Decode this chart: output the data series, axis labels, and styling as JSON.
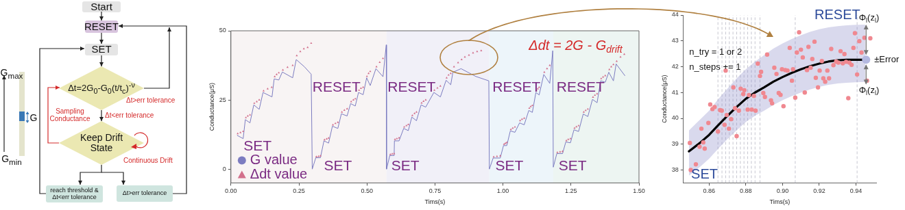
{
  "chart_data": [
    {
      "type": "other",
      "annotations": [
        "Start",
        "RESET",
        "SET",
        "Δt=2G$_{0}$-G$_{0}$(t/t$_{c}$)$^{-ν}$",
        "Δt>err tolerance",
        "Sampling Conductance",
        "Δt<err tolerance",
        "Keep Drift State",
        "Continuous Drift",
        "reach threshold & Δt<err tolerance",
        "Δt>err tolerance",
        "G$_{max}$",
        "G",
        "G$_{min}$"
      ]
    },
    {
      "type": "line",
      "xlabel": "Tims(s)",
      "ylabel": "Conductance(μS)",
      "xlim": [
        0,
        1.5
      ],
      "ylim": [
        -5,
        50
      ],
      "xticks": [
        {
          "value": 0,
          "label": "0.00"
        },
        0.25,
        {
          "value": 0.5,
          "label": "0.50"
        },
        0.75,
        {
          "value": 1,
          "label": "1.00"
        },
        1.25,
        {
          "value": 1.5,
          "label": "1.50"
        }
      ],
      "yticks": [
        0,
        25,
        50
      ],
      "legend": "bottom left",
      "bands": [
        {
          "axis": "x",
          "from": 0,
          "to": 0.572,
          "color": "#f8f4f4"
        },
        {
          "axis": "x",
          "from": 0.572,
          "to": 0.95,
          "color": "#f1f0f8"
        },
        {
          "axis": "x",
          "from": 0.95,
          "to": 1.185,
          "color": "#edf5fa"
        },
        {
          "axis": "x",
          "from": 1.185,
          "to": 1.5,
          "color": "#edf5f2"
        }
      ],
      "annotations": [
        "SET",
        "RESET",
        "SET",
        "RESET",
        "SET",
        "RESET",
        "SET",
        "RESET",
        "SET",
        "Δdt = 2G - G$_{drift}$"
      ],
      "series": [
        {
          "name": "G value",
          "type": "line",
          "marker": "none",
          "color": "#7c7cc0",
          "x": [
            0.023,
            0.045,
            0.053,
            0.07,
            0.084,
            0.104,
            0.118,
            0.151,
            0.159,
            0.176,
            0.189,
            0.227,
            0.24,
            0.27,
            0.295,
            0.299,
            0.312,
            0.329,
            0.342,
            0.359,
            0.373,
            0.393,
            0.406,
            0.427,
            0.44,
            0.457,
            0.469,
            0.486,
            0.499,
            0.512,
            0.533,
            0.559,
            0.571,
            0.572,
            0.584,
            0.6,
            0.601,
            0.618,
            0.635,
            0.652,
            0.665,
            0.682,
            0.699,
            0.716,
            0.746,
            0.77,
            0.791,
            0.808,
            0.816,
            0.846,
            0.9,
            0.948,
            0.95,
            0.964,
            0.99,
            1.002,
            1.014,
            1.027,
            1.044,
            1.061,
            1.078,
            1.095,
            1.108,
            1.121,
            1.133,
            1.15,
            1.172,
            1.183,
            1.185,
            1.198,
            1.219,
            1.231,
            1.248,
            1.261,
            1.278,
            1.295,
            1.312,
            1.329,
            1.346,
            1.359,
            1.376,
            1.389,
            1.406,
            1.416,
            1.448
          ],
          "values": [
            12.2,
            11.0,
            17.9,
            16.7,
            23.2,
            21.6,
            27.7,
            26.1,
            32.6,
            32.2,
            35.1,
            33.0,
            39.6,
            37.0,
            34.3,
            0,
            4.1,
            4.1,
            10.2,
            9.4,
            15.5,
            14.7,
            20.0,
            19.2,
            23.7,
            22.8,
            27.7,
            26.9,
            33.0,
            30.2,
            36.3,
            33.4,
            44.9,
            0,
            4.9,
            4.9,
            10.2,
            10.2,
            14.7,
            13.9,
            18.8,
            17.5,
            23.2,
            22.4,
            27.7,
            26.1,
            32.1,
            30.5,
            35.0,
            36.3,
            33.5,
            31.9,
            0,
            4.0,
            4.0,
            8.5,
            8.5,
            13.8,
            13.3,
            16.7,
            16.0,
            21.2,
            20.5,
            27.7,
            26.8,
            34.2,
            31.0,
            42.8,
            0.7,
            5.6,
            5.6,
            9.8,
            9.5,
            14.2,
            13.6,
            19.9,
            19.0,
            25.2,
            24.0,
            31.9,
            31.4,
            35.0,
            31.9,
            38.0,
            33.8
          ]
        },
        {
          "name": "Δdt value",
          "type": "scatter",
          "marker": "triangle",
          "color": "#d2708c",
          "x": [
            0.025,
            0.035,
            0.045,
            0.055,
            0.062,
            0.07,
            0.086,
            0.095,
            0.104,
            0.12,
            0.135,
            0.15,
            0.161,
            0.168,
            0.176,
            0.191,
            0.208,
            0.227,
            0.242,
            0.255,
            0.268,
            0.282,
            0.295,
            0.314,
            0.322,
            0.329,
            0.344,
            0.352,
            0.359,
            0.375,
            0.384,
            0.393,
            0.408,
            0.417,
            0.427,
            0.442,
            0.45,
            0.457,
            0.471,
            0.478,
            0.486,
            0.5,
            0.506,
            0.512,
            0.535,
            0.547,
            0.559,
            0.586,
            0.593,
            0.6,
            0.603,
            0.61,
            0.618,
            0.637,
            0.645,
            0.652,
            0.667,
            0.675,
            0.682,
            0.701,
            0.708,
            0.716,
            0.748,
            0.759,
            0.77,
            0.793,
            0.8,
            0.808,
            0.82,
            0.835,
            0.848,
            0.86,
            0.875,
            0.89,
            0.905,
            0.92,
            0.966,
            0.978,
            0.99,
            1.004,
            1.009,
            1.014,
            1.029,
            1.036,
            1.044,
            1.063,
            1.07,
            1.078,
            1.097,
            1.102,
            1.108,
            1.123,
            1.128,
            1.133,
            1.152,
            1.162,
            1.172,
            1.2,
            1.21,
            1.219,
            1.233,
            1.24,
            1.248,
            1.263,
            1.27,
            1.278,
            1.297,
            1.304,
            1.312,
            1.331,
            1.338,
            1.346,
            1.361,
            1.368,
            1.376,
            1.391,
            1.398,
            1.406,
            1.418,
            1.432,
            1.446
          ],
          "values": [
            12.8,
            13.2,
            13.6,
            18.6,
            19.2,
            19.6,
            23.8,
            24.4,
            25.0,
            28.3,
            29.0,
            29.6,
            33.4,
            34.2,
            34.8,
            35.8,
            36.8,
            37.5,
            41.0,
            42.5,
            43.5,
            44.0,
            45.5,
            4.5,
            4.6,
            4.8,
            10.6,
            10.9,
            11.2,
            16.0,
            16.5,
            16.9,
            20.6,
            21.3,
            21.8,
            24.4,
            25.0,
            25.4,
            28.5,
            29.2,
            29.6,
            33.5,
            34.6,
            35.3,
            37.0,
            38.6,
            40.0,
            5.3,
            5.5,
            5.6,
            10.7,
            11.0,
            11.3,
            15.2,
            15.7,
            16.1,
            19.4,
            20.1,
            20.6,
            23.9,
            24.5,
            25.0,
            28.5,
            29.3,
            30.0,
            33.0,
            34.0,
            34.6,
            37.0,
            38.5,
            39.6,
            40.5,
            41.2,
            42.0,
            42.5,
            42.8,
            4.4,
            4.6,
            4.8,
            9.0,
            9.3,
            9.6,
            14.3,
            14.8,
            15.2,
            17.5,
            18.0,
            18.4,
            22.0,
            22.6,
            23.0,
            28.4,
            29.0,
            29.6,
            35.0,
            36.3,
            37.5,
            6.0,
            6.2,
            6.4,
            10.3,
            10.7,
            11.0,
            14.8,
            15.3,
            15.7,
            20.6,
            21.2,
            21.7,
            26.0,
            26.7,
            27.2,
            32.7,
            33.3,
            33.8,
            36.0,
            37.0,
            37.8,
            39.0,
            40.5,
            41.5
          ]
        }
      ]
    },
    {
      "type": "scatter",
      "xlabel": "Tims(s)",
      "ylabel": "Conductance(μS)",
      "xlim": [
        0.846,
        0.951
      ],
      "ylim": [
        37.5,
        44
      ],
      "xticks": [
        0.86,
        0.88,
        {
          "value": 0.9,
          "label": "0.90"
        },
        0.92,
        0.94
      ],
      "yticks": [
        38,
        39,
        40,
        41,
        42,
        43,
        44
      ],
      "ref_lines": [
        {
          "axis": "x",
          "value": 0.8648,
          "color": "#b8b8c4",
          "line_style": "dashed"
        },
        {
          "axis": "x",
          "value": 0.867,
          "color": "#b8b8c4",
          "line_style": "dashed"
        },
        {
          "axis": "x",
          "value": 0.869,
          "color": "#b8b8c4",
          "line_style": "dashed"
        },
        {
          "axis": "x",
          "value": 0.871,
          "color": "#b8b8c4",
          "line_style": "dashed"
        },
        {
          "axis": "x",
          "value": 0.873,
          "color": "#b8b8c4",
          "line_style": "dashed"
        },
        {
          "axis": "x",
          "value": 0.875,
          "color": "#b8b8c4",
          "line_style": "dashed"
        },
        {
          "axis": "x",
          "value": 0.877,
          "color": "#b8b8c4",
          "line_style": "dashed"
        },
        {
          "axis": "x",
          "value": 0.879,
          "color": "#b8b8c4",
          "line_style": "dashed"
        },
        {
          "axis": "x",
          "value": 0.881,
          "color": "#b8b8c4",
          "line_style": "dashed"
        },
        {
          "axis": "x",
          "value": 0.883,
          "color": "#b8b8c4",
          "line_style": "dashed"
        },
        {
          "axis": "x",
          "value": 0.885,
          "color": "#b8b8c4",
          "line_style": "dashed"
        },
        {
          "axis": "x",
          "value": 0.8877,
          "color": "#b8b8c4",
          "line_style": "dashed"
        },
        {
          "axis": "x",
          "value": 0.9069,
          "color": "#b8b8c4",
          "line_style": "dashed"
        },
        {
          "axis": "x",
          "value": 0.9406,
          "color": "#b8b8c4",
          "line_style": "dashed"
        }
      ],
      "annotations": [
        "RESET",
        "SET",
        {
          "text": "Φ$_{l}$(z$_{l}$)",
          "x": 0.9455,
          "y": 42.27
        },
        {
          "text": "Φ$_{l}$(z$_{l}$)",
          "x": 0.9455,
          "y": 42.27
        },
        "±Error",
        "n_try = 1 or 2",
        "n_steps += 1"
      ],
      "series": [
        {
          "type": "scatter",
          "marker": "circle",
          "color": "#f08890",
          "x": [
            0.8495,
            0.85,
            0.8528,
            0.8548,
            0.8558,
            0.8568,
            0.8576,
            0.8596,
            0.8606,
            0.8618,
            0.863,
            0.8648,
            0.866,
            0.8669,
            0.869,
            0.8696,
            0.8684,
            0.8708,
            0.872,
            0.8732,
            0.8741,
            0.875,
            0.8762,
            0.8772,
            0.8786,
            0.8792,
            0.881,
            0.8817,
            0.8832,
            0.8844,
            0.8853,
            0.8865,
            0.8877,
            0.8883,
            0.8895,
            0.8904,
            0.8916,
            0.8937,
            0.8943,
            0.8955,
            0.8967,
            0.8979,
            0.8989,
            0.8997,
            0.9005,
            0.9015,
            0.9027,
            0.9039,
            0.9051,
            0.9057,
            0.9069,
            0.9078,
            0.909,
            0.91,
            0.911,
            0.9121,
            0.9133,
            0.9141,
            0.9153,
            0.9162,
            0.9174,
            0.9181,
            0.9193,
            0.9202,
            0.9214,
            0.9222,
            0.9232,
            0.9244,
            0.9253,
            0.9265,
            0.9277,
            0.9292,
            0.9304,
            0.9316,
            0.9328,
            0.9337,
            0.9346,
            0.9358,
            0.9364,
            0.9376,
            0.9386,
            0.9394,
            0.9406,
            0.9418,
            0.943,
            0.9446,
            0.946,
            0.9478
          ],
          "values": [
            39.05,
            38.0,
            38.22,
            38.9,
            39.6,
            39.07,
            38.83,
            39.82,
            40.54,
            40.36,
            40.44,
            39.49,
            40.32,
            40.3,
            41.85,
            40.13,
            39.75,
            39.6,
            39.97,
            41.2,
            40.39,
            39.31,
            40.3,
            41.15,
            40.94,
            41.09,
            40.34,
            40.9,
            40.34,
            40.87,
            40.3,
            42.12,
            41.64,
            41.8,
            40.98,
            40.83,
            42.47,
            40.7,
            40.58,
            41.96,
            41.72,
            40.98,
            40.91,
            41.9,
            40.47,
            41.87,
            41.85,
            42.73,
            41.46,
            41.9,
            40.8,
            42.55,
            43.33,
            42.66,
            42.36,
            41.0,
            41.87,
            42.77,
            41.96,
            42.3,
            42.97,
            41.57,
            41.2,
            41.85,
            42.22,
            41.55,
            41.42,
            41.85,
            41.55,
            42.69,
            42.06,
            42.2,
            42.16,
            42.6,
            42.13,
            42.49,
            42.19,
            40.78,
            42.16,
            42.07,
            42.73,
            43.3,
            41.7,
            42.99,
            42.55,
            43.12,
            41.46,
            43.1
          ]
        },
        {
          "type": "line",
          "marker": "none",
          "color": "#000000",
          "x": [
            0.849,
            0.855,
            0.86,
            0.865,
            0.87,
            0.875,
            0.88,
            0.885,
            0.89,
            0.895,
            0.9,
            0.905,
            0.91,
            0.915,
            0.92,
            0.925,
            0.93,
            0.935,
            0.94,
            0.945
          ],
          "values": [
            38.72,
            39.05,
            39.36,
            39.74,
            40.1,
            40.44,
            40.76,
            41.0,
            41.2,
            41.42,
            41.6,
            41.76,
            41.9,
            42.02,
            42.12,
            42.2,
            42.25,
            42.27,
            42.27,
            42.27
          ],
          "lower": [
            37.78,
            38.12,
            38.44,
            38.83,
            39.2,
            39.54,
            39.86,
            40.1,
            40.3,
            40.52,
            40.7,
            40.86,
            41.0,
            41.12,
            41.22,
            41.3,
            41.35,
            41.38,
            41.4,
            41.41
          ],
          "upper": [
            39.53,
            39.95,
            40.3,
            40.75,
            41.15,
            41.55,
            41.9,
            42.2,
            42.45,
            42.7,
            42.9,
            43.07,
            43.22,
            43.35,
            43.45,
            43.52,
            43.57,
            43.6,
            43.62,
            43.63
          ]
        },
        {
          "type": "scatter",
          "marker": "circle",
          "color": "#b4b8e0",
          "x": [
            0.9455
          ],
          "values": [
            42.27
          ]
        }
      ]
    }
  ]
}
